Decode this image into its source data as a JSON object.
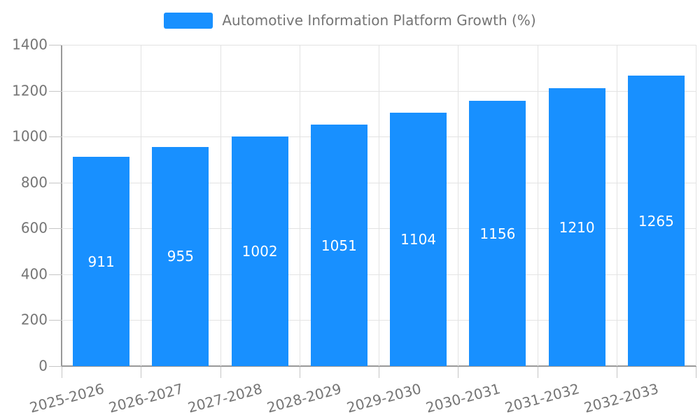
{
  "legend": {
    "items": [
      {
        "label": "Automotive Information Platform Growth (%)",
        "color": "#1890FF"
      }
    ]
  },
  "chart_data": {
    "type": "bar",
    "title": "Automotive Information Platform Growth (%)",
    "categories": [
      "2025-2026",
      "2026-2027",
      "2027-2028",
      "2028-2029",
      "2029-2030",
      "2030-2031",
      "2031-2032",
      "2032-2033"
    ],
    "series": [
      {
        "name": "Automotive Information Platform Growth (%)",
        "values": [
          911,
          955,
          1002,
          1051,
          1104,
          1156,
          1210,
          1265
        ],
        "color": "#1890FF"
      }
    ],
    "value_labels": [
      "911",
      "955",
      "1002",
      "1051",
      "1104",
      "1156",
      "1210",
      "1265"
    ],
    "xlabel": "",
    "ylabel": "",
    "ylim": [
      0,
      1400
    ],
    "yticks": [
      0,
      200,
      400,
      600,
      800,
      1000,
      1200,
      1400
    ],
    "grid": true,
    "legend_position": "top-center",
    "x_tick_rotation_deg": -15,
    "colors": {
      "bar": "#1890FF",
      "bar_value_label": "#FFFFFF",
      "axis_label": "#757575",
      "axis_line": "#999999",
      "gridline": "#E3E3E3",
      "tick": "#C6C6C6",
      "background": "#FFFFFF"
    }
  }
}
